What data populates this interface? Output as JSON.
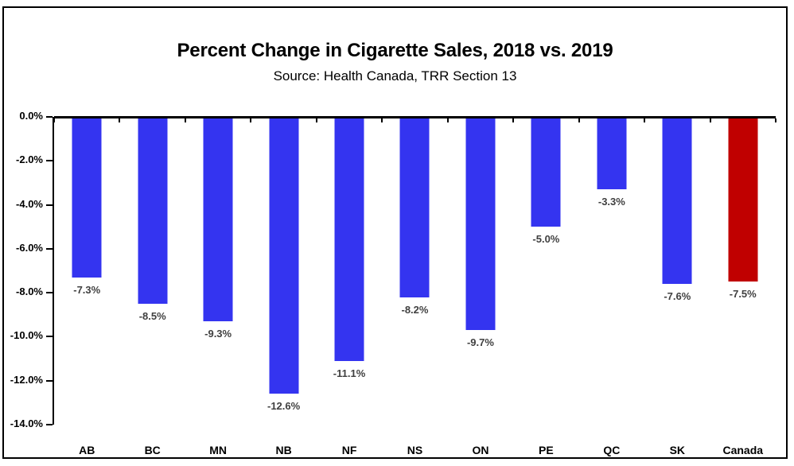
{
  "page": {
    "background": "#ffffff",
    "border_color": "#000000"
  },
  "chart_data": {
    "type": "bar",
    "title": "Percent Change in Cigarette Sales, 2018 vs. 2019",
    "subtitle": "Source: Health Canada, TRR Section 13",
    "categories": [
      "AB",
      "BC",
      "MN",
      "NB",
      "NF",
      "NS",
      "ON",
      "PE",
      "QC",
      "SK",
      "Canada"
    ],
    "values": [
      -7.3,
      -8.5,
      -9.3,
      -12.6,
      -11.1,
      -8.2,
      -9.7,
      -5.0,
      -3.3,
      -7.6,
      -7.5
    ],
    "value_labels": [
      "-7.3%",
      "-8.5%",
      "-9.3%",
      "-12.6%",
      "-11.1%",
      "-8.2%",
      "-9.7%",
      "-5.0%",
      "-3.3%",
      "-7.6%",
      "-7.5%"
    ],
    "ylim": [
      -14,
      0
    ],
    "ytick_step": 2,
    "ytick_labels": [
      "0.0%",
      "-2.0%",
      "-4.0%",
      "-6.0%",
      "-8.0%",
      "-10.0%",
      "-12.0%",
      "-14.0%"
    ],
    "grid": false,
    "legend": "none",
    "colors": {
      "bar_default": "#3434F0",
      "bar_highlight": "#C00000",
      "highlight_category": "Canada",
      "axis": "#000000",
      "value_label": "#404040",
      "category_label": "#000000"
    }
  }
}
